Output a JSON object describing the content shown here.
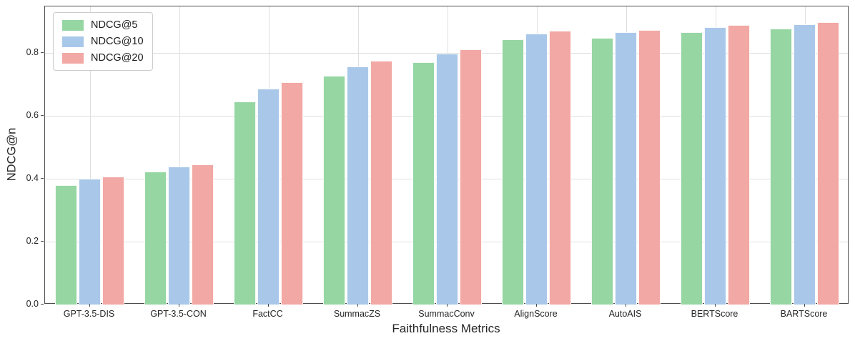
{
  "chart_data": {
    "type": "bar",
    "title": "",
    "xlabel": "Faithfulness Metrics",
    "ylabel": "NDCG@n",
    "categories": [
      "GPT-3.5-DIS",
      "GPT-3.5-CON",
      "FactCC",
      "SummacZS",
      "SummacConv",
      "AlignScore",
      "AutoAIS",
      "BERTScore",
      "BARTScore"
    ],
    "series": [
      {
        "name": "NDCG@5",
        "color": "#96D6A3",
        "values": [
          0.38,
          0.422,
          0.645,
          0.727,
          0.77,
          0.843,
          0.847,
          0.866,
          0.877
        ]
      },
      {
        "name": "NDCG@10",
        "color": "#A9C8E9",
        "values": [
          0.4,
          0.438,
          0.687,
          0.758,
          0.797,
          0.862,
          0.866,
          0.883,
          0.892
        ]
      },
      {
        "name": "NDCG@20",
        "color": "#F2A8A4",
        "values": [
          0.408,
          0.445,
          0.708,
          0.776,
          0.811,
          0.871,
          0.874,
          0.889,
          0.899
        ]
      }
    ],
    "ytick_labels": [
      "0.0",
      "0.2",
      "0.4",
      "0.6",
      "0.8"
    ],
    "ylim": [
      0,
      0.948
    ],
    "grid": true,
    "legend_position": "upper-left",
    "colors": {
      "spine": "#4c4c4c",
      "grid": "#dfdfdf",
      "text": "#262626"
    }
  }
}
